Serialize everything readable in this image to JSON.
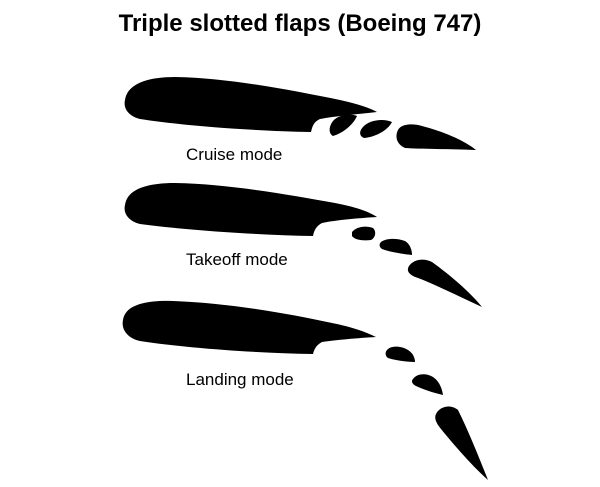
{
  "title": "Triple slotted flaps (Boeing 747)",
  "modes": [
    {
      "label": "Cruise mode"
    },
    {
      "label": "Takeoff mode"
    },
    {
      "label": "Landing mode"
    }
  ],
  "colors": {
    "background": "#ffffff",
    "shape": "#000000",
    "text": "#000000"
  }
}
